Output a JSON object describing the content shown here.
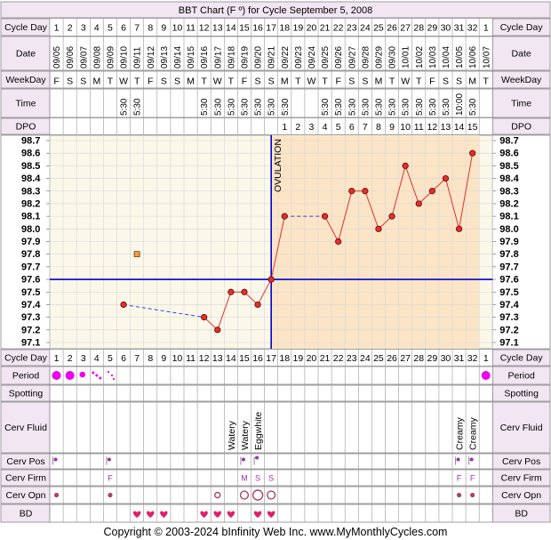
{
  "title": "BBT Chart (F º) for Cycle September 5, 2008",
  "footer": "Copyright © 2003-2024 bInfinity Web Inc.     www.MyMonthlyCycles.com",
  "row_labels": {
    "cycle_day": "Cycle Day",
    "date": "Date",
    "weekday": "WeekDay",
    "time": "Time",
    "dpo": "DPO",
    "period": "Period",
    "spotting": "Spotting",
    "cerv_fluid": "Cerv Fluid",
    "cerv_pos": "Cerv Pos",
    "cerv_firm": "Cerv Firm",
    "cerv_opn": "Cerv Opn",
    "bd": "BD"
  },
  "colors": {
    "header_bg": "#f2e6f2",
    "chart_pre": "#fbf8ea",
    "chart_post": "#fbe5c6",
    "grid": "#d6d6d6",
    "line": "#e03030",
    "marker": "#e03030",
    "coverline": "#0000cc",
    "period": "#ee00ee",
    "heart": "#e0206a",
    "ovulation_line": "#0000cc"
  },
  "chart_data": {
    "type": "line",
    "title": "BBT Chart (F º) for Cycle September 5, 2008",
    "cycle_days": [
      1,
      2,
      3,
      4,
      5,
      6,
      7,
      8,
      9,
      10,
      11,
      12,
      13,
      14,
      15,
      16,
      17,
      18,
      19,
      20,
      21,
      22,
      23,
      24,
      25,
      26,
      27,
      28,
      29,
      30,
      31,
      32,
      1
    ],
    "dates": [
      "09/05",
      "09/06",
      "09/07",
      "09/08",
      "09/09",
      "09/10",
      "09/11",
      "09/12",
      "09/13",
      "09/14",
      "09/15",
      "09/16",
      "09/17",
      "09/18",
      "09/19",
      "09/20",
      "09/21",
      "09/22",
      "09/23",
      "09/24",
      "09/25",
      "09/26",
      "09/27",
      "09/28",
      "09/29",
      "09/30",
      "10/01",
      "10/02",
      "10/03",
      "10/04",
      "10/05",
      "10/06",
      "10/07"
    ],
    "weekdays": [
      "F",
      "S",
      "S",
      "M",
      "T",
      "W",
      "T",
      "F",
      "S",
      "S",
      "M",
      "T",
      "W",
      "T",
      "F",
      "S",
      "S",
      "M",
      "T",
      "W",
      "T",
      "F",
      "S",
      "S",
      "M",
      "T",
      "W",
      "T",
      "F",
      "S",
      "S",
      "M",
      "T"
    ],
    "times": [
      "",
      "",
      "",
      "",
      "",
      "5:30",
      "5:30",
      "",
      "",
      "",
      "",
      "5:30",
      "5:30",
      "5:30",
      "5:30",
      "5:30",
      "5:30",
      "5:30",
      "",
      "",
      "5:30",
      "5:30",
      "5:30",
      "5:30",
      "5:30",
      "5:30",
      "5:30",
      "5:30",
      "5:30",
      "5:30",
      "10:00",
      "5:30",
      ""
    ],
    "dpo": [
      "",
      "",
      "",
      "",
      "",
      "",
      "",
      "",
      "",
      "",
      "",
      "",
      "",
      "",
      "",
      "",
      "",
      "1",
      "2",
      "3",
      "4",
      "5",
      "6",
      "7",
      "8",
      "9",
      "10",
      "11",
      "12",
      "13",
      "14",
      "15",
      ""
    ],
    "temps": [
      null,
      null,
      null,
      null,
      null,
      97.4,
      null,
      null,
      null,
      null,
      null,
      97.3,
      97.2,
      97.5,
      97.5,
      97.4,
      97.6,
      98.1,
      null,
      null,
      98.1,
      97.9,
      98.3,
      98.3,
      98.0,
      98.1,
      98.5,
      98.2,
      98.3,
      98.4,
      98.0,
      98.6,
      null
    ],
    "solid_segments": [
      [
        12,
        13
      ],
      [
        13,
        14
      ],
      [
        14,
        15
      ],
      [
        15,
        16
      ],
      [
        16,
        17
      ],
      [
        17,
        18
      ],
      [
        21,
        22
      ],
      [
        22,
        23
      ],
      [
        23,
        24
      ],
      [
        24,
        25
      ],
      [
        25,
        26
      ],
      [
        26,
        27
      ],
      [
        27,
        28
      ],
      [
        28,
        29
      ],
      [
        29,
        30
      ],
      [
        30,
        31
      ],
      [
        31,
        32
      ]
    ],
    "dashed_segments": [
      [
        6,
        12
      ],
      [
        18,
        21
      ]
    ],
    "outlier": {
      "day": 7,
      "temp": 97.8
    },
    "coverline": 97.6,
    "ovulation_day": 17,
    "ovulation_label": "OVULATION",
    "y_ticks": [
      98.7,
      98.6,
      98.5,
      98.4,
      98.3,
      98.2,
      98.1,
      98.0,
      97.9,
      97.8,
      97.7,
      97.6,
      97.5,
      97.4,
      97.3,
      97.2,
      97.1
    ],
    "ylim": [
      97.1,
      98.7
    ]
  },
  "observations": {
    "period": [
      {
        "day": 1,
        "kind": "heavy"
      },
      {
        "day": 2,
        "kind": "heavy"
      },
      {
        "day": 3,
        "kind": "medium"
      },
      {
        "day": 4,
        "kind": "light"
      },
      {
        "day": 5,
        "kind": "spot"
      },
      {
        "day": 33,
        "kind": "heavy"
      }
    ],
    "cerv_fluid": [
      {
        "day": 14,
        "text": "Watery"
      },
      {
        "day": 15,
        "text": "Watery"
      },
      {
        "day": 16,
        "text": "Eggwhite"
      },
      {
        "day": 31,
        "text": "Creamy"
      },
      {
        "day": 32,
        "text": "Creamy"
      }
    ],
    "cerv_pos": [
      {
        "day": 1,
        "kind": "low"
      },
      {
        "day": 5,
        "kind": "low"
      },
      {
        "day": 15,
        "kind": "low"
      },
      {
        "day": 16,
        "kind": "high"
      },
      {
        "day": 31,
        "kind": "low"
      },
      {
        "day": 32,
        "kind": "low"
      }
    ],
    "cerv_firm": [
      {
        "day": 5,
        "text": "F"
      },
      {
        "day": 15,
        "text": "M"
      },
      {
        "day": 16,
        "text": "S"
      },
      {
        "day": 17,
        "text": "S"
      },
      {
        "day": 31,
        "text": "F"
      },
      {
        "day": 32,
        "text": "F"
      }
    ],
    "cerv_opn": [
      {
        "day": 1,
        "kind": "closed"
      },
      {
        "day": 5,
        "kind": "closed"
      },
      {
        "day": 13,
        "kind": "small"
      },
      {
        "day": 15,
        "kind": "medium"
      },
      {
        "day": 16,
        "kind": "large"
      },
      {
        "day": 17,
        "kind": "medium"
      },
      {
        "day": 31,
        "kind": "closed"
      },
      {
        "day": 32,
        "kind": "closed"
      }
    ],
    "bd": [
      7,
      8,
      9,
      12,
      13,
      14,
      16,
      17
    ]
  }
}
